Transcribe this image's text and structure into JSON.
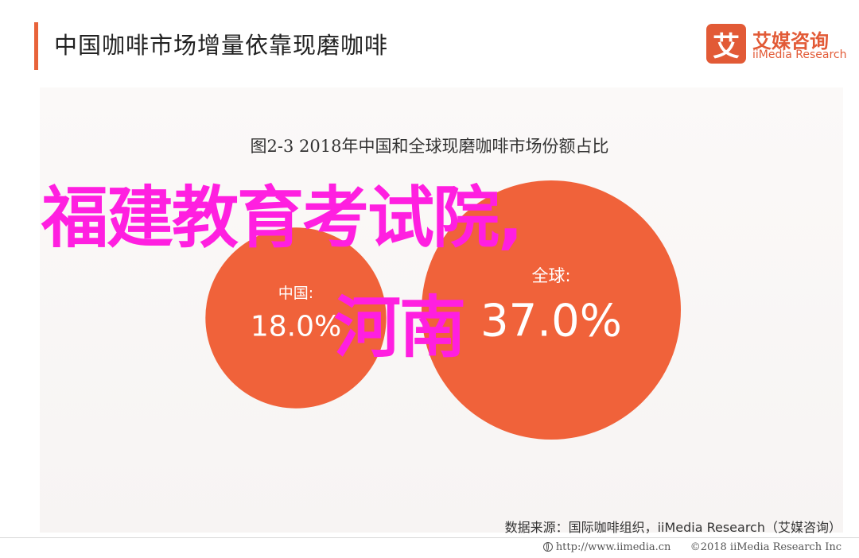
{
  "header": {
    "title": "中国咖啡市场增量依靠现磨咖啡"
  },
  "logo": {
    "mark": "艾",
    "cn": "艾媒咨询",
    "en": "iiMedia Research"
  },
  "overlay": {
    "line1": "福建教育考试院,",
    "line2": "河南"
  },
  "chart_data": {
    "type": "bubble",
    "title": "图2-3 2018年中国和全球现磨咖啡市场份额占比",
    "series": [
      {
        "name": "中国:",
        "value": 18.0,
        "value_label": "18.0%",
        "color": "#f0623a"
      },
      {
        "name": "全球:",
        "value": 37.0,
        "value_label": "37.0%",
        "color": "#f0623a"
      }
    ],
    "colors": {
      "bubble": "#f0623a",
      "label_text": "#ffffff"
    }
  },
  "footer": {
    "source": "数据来源：国际咖啡组织，iiMedia Research（艾媒咨询）",
    "url": "http://www.iimedia.cn",
    "copyright": "©2018  iiMedia Research  Inc"
  }
}
